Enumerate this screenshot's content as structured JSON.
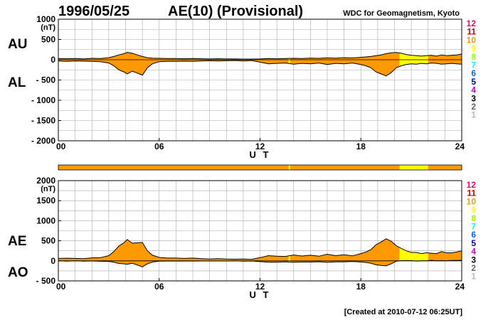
{
  "header": {
    "date": "1996/05/25",
    "title": "AE(10) (Provisional)",
    "source": "WDC for Geomagnetism, Kyoto"
  },
  "footer": "[Created at 2010-07-12 06:25UT]",
  "colors": {
    "fill_main": "#ff9900",
    "fill_low_count": "#ffff00",
    "grid": "#aaaaaa",
    "curve": "#000000"
  },
  "legend_counts": [
    {
      "label": "12",
      "color": "#ff0066"
    },
    {
      "label": "11",
      "color": "#cc0000"
    },
    {
      "label": "10",
      "color": "#ff9900"
    },
    {
      "label": "9",
      "color": "#ffff00"
    },
    {
      "label": "8",
      "color": "#99ff00"
    },
    {
      "label": "7",
      "color": "#00ffff"
    },
    {
      "label": "6",
      "color": "#0066ff"
    },
    {
      "label": "5",
      "color": "#0000cc"
    },
    {
      "label": "4",
      "color": "#cc00cc"
    },
    {
      "label": "3",
      "color": "#000000"
    },
    {
      "label": "2",
      "color": "#666666"
    },
    {
      "label": "1",
      "color": "#bbbbbb"
    }
  ],
  "chart_data": [
    {
      "type": "area",
      "panel": "AU/AL",
      "side_labels": [
        "AU",
        "AL"
      ],
      "unit": "(nT)",
      "xlabel": "U T",
      "x_ticks": [
        "00",
        "06",
        "12",
        "18",
        "24"
      ],
      "xlim": [
        0,
        24
      ],
      "ylim": [
        -2000,
        1000
      ],
      "y_ticks": [
        {
          "value": 1000,
          "label": "1000"
        },
        {
          "value": 500,
          "label": "500"
        },
        {
          "value": 0,
          "label": "0"
        },
        {
          "value": -500,
          "label": "- 500"
        },
        {
          "value": -1000,
          "label": "- 1000"
        },
        {
          "value": -1500,
          "label": "- 1500"
        },
        {
          "value": -2000,
          "label": "- 2000"
        }
      ],
      "grid": true,
      "series": [
        {
          "name": "AU",
          "x": [
            0,
            0.5,
            1,
            1.5,
            2,
            2.5,
            3,
            3.3,
            3.6,
            3.9,
            4.1,
            4.4,
            4.7,
            5,
            5.3,
            5.6,
            6,
            6.5,
            7,
            7.5,
            8,
            8.5,
            9,
            9.5,
            10,
            10.5,
            11,
            11.5,
            12,
            12.5,
            13,
            13.5,
            14,
            14.5,
            15,
            15.5,
            16,
            16.5,
            17,
            17.5,
            18,
            18.3,
            18.6,
            18.9,
            19.2,
            19.5,
            19.8,
            20.1,
            20.4,
            20.7,
            21,
            21.3,
            21.6,
            21.9,
            22.2,
            22.5,
            22.8,
            23.1,
            23.4,
            23.7,
            24
          ],
          "values": [
            30,
            25,
            30,
            20,
            35,
            30,
            50,
            80,
            120,
            150,
            180,
            160,
            120,
            80,
            50,
            40,
            35,
            30,
            30,
            25,
            30,
            25,
            20,
            25,
            20,
            20,
            15,
            15,
            20,
            30,
            25,
            30,
            35,
            30,
            40,
            35,
            45,
            40,
            50,
            45,
            60,
            70,
            80,
            100,
            120,
            150,
            170,
            180,
            160,
            130,
            110,
            100,
            90,
            100,
            110,
            90,
            120,
            100,
            110,
            120,
            140
          ]
        },
        {
          "name": "AL",
          "x": [
            0,
            0.5,
            1,
            1.5,
            2,
            2.5,
            3,
            3.3,
            3.6,
            3.9,
            4.1,
            4.4,
            4.7,
            5,
            5.3,
            5.6,
            6,
            6.5,
            7,
            7.5,
            8,
            8.5,
            9,
            9.5,
            10,
            10.5,
            11,
            11.5,
            12,
            12.5,
            13,
            13.5,
            14,
            14.5,
            15,
            15.5,
            16,
            16.5,
            17,
            17.5,
            18,
            18.3,
            18.6,
            18.9,
            19.2,
            19.5,
            19.8,
            20.1,
            20.4,
            20.7,
            21,
            21.3,
            21.6,
            21.9,
            22.2,
            22.5,
            22.8,
            23.1,
            23.4,
            23.7,
            24
          ],
          "values": [
            -30,
            -40,
            -30,
            -35,
            -40,
            -50,
            -80,
            -150,
            -250,
            -300,
            -350,
            -280,
            -330,
            -380,
            -200,
            -100,
            -50,
            -40,
            -40,
            -35,
            -40,
            -30,
            -25,
            -30,
            -25,
            -20,
            -30,
            -20,
            -60,
            -100,
            -90,
            -80,
            -110,
            -90,
            -100,
            -80,
            -120,
            -90,
            -100,
            -80,
            -120,
            -150,
            -200,
            -300,
            -350,
            -400,
            -320,
            -200,
            -150,
            -120,
            -100,
            -110,
            -90,
            -100,
            -80,
            -90,
            -110,
            -100,
            -90,
            -100,
            -110
          ]
        }
      ]
    },
    {
      "type": "area",
      "panel": "AE/AO",
      "side_labels": [
        "AE",
        "AO"
      ],
      "unit": "(nT)",
      "xlabel": "U T",
      "x_ticks": [
        "00",
        "06",
        "12",
        "18",
        "24"
      ],
      "xlim": [
        0,
        24
      ],
      "ylim": [
        -500,
        2000
      ],
      "y_ticks": [
        {
          "value": 2000,
          "label": "2000"
        },
        {
          "value": 1500,
          "label": "1500"
        },
        {
          "value": 1000,
          "label": "1000"
        },
        {
          "value": 500,
          "label": "500"
        },
        {
          "value": 0,
          "label": "0"
        },
        {
          "value": -500,
          "label": "- 500"
        }
      ],
      "grid": true,
      "series": [
        {
          "name": "AE",
          "x": [
            0,
            0.5,
            1,
            1.5,
            2,
            2.5,
            3,
            3.3,
            3.6,
            3.9,
            4.1,
            4.4,
            4.7,
            5,
            5.3,
            5.6,
            6,
            6.5,
            7,
            7.5,
            8,
            8.5,
            9,
            9.5,
            10,
            10.5,
            11,
            11.5,
            12,
            12.5,
            13,
            13.5,
            14,
            14.5,
            15,
            15.5,
            16,
            16.5,
            17,
            17.5,
            18,
            18.3,
            18.6,
            18.9,
            19.2,
            19.5,
            19.8,
            20.1,
            20.4,
            20.7,
            21,
            21.3,
            21.6,
            21.9,
            22.2,
            22.5,
            22.8,
            23.1,
            23.4,
            23.7,
            24
          ],
          "values": [
            60,
            65,
            60,
            55,
            75,
            80,
            130,
            230,
            370,
            450,
            530,
            440,
            450,
            460,
            250,
            140,
            85,
            70,
            70,
            60,
            70,
            55,
            45,
            55,
            45,
            40,
            45,
            35,
            80,
            130,
            115,
            110,
            145,
            120,
            140,
            115,
            165,
            130,
            150,
            125,
            180,
            220,
            280,
            400,
            470,
            550,
            490,
            380,
            310,
            250,
            210,
            210,
            180,
            200,
            190,
            180,
            230,
            200,
            200,
            220,
            250
          ]
        },
        {
          "name": "AO",
          "x": [
            0,
            0.5,
            1,
            1.5,
            2,
            2.5,
            3,
            3.3,
            3.6,
            3.9,
            4.1,
            4.4,
            4.7,
            5,
            5.3,
            5.6,
            6,
            6.5,
            7,
            7.5,
            8,
            8.5,
            9,
            9.5,
            10,
            10.5,
            11,
            11.5,
            12,
            12.5,
            13,
            13.5,
            14,
            14.5,
            15,
            15.5,
            16,
            16.5,
            17,
            17.5,
            18,
            18.3,
            18.6,
            18.9,
            19.2,
            19.5,
            19.8,
            20.1,
            20.4,
            20.7,
            21,
            21.3,
            21.6,
            21.9,
            22.2,
            22.5,
            22.8,
            23.1,
            23.4,
            23.7,
            24
          ],
          "values": [
            0,
            -8,
            0,
            -8,
            -3,
            -10,
            -15,
            -35,
            -65,
            -75,
            -85,
            -60,
            -105,
            -150,
            -75,
            -30,
            -8,
            -5,
            -5,
            -5,
            -5,
            -3,
            -3,
            -3,
            -3,
            0,
            -8,
            -3,
            -20,
            -35,
            -33,
            -25,
            -38,
            -30,
            -30,
            -23,
            -38,
            -25,
            -25,
            -18,
            -30,
            -40,
            -60,
            -100,
            -115,
            -125,
            -75,
            -10,
            5,
            5,
            5,
            -5,
            0,
            0,
            15,
            0,
            5,
            0,
            10,
            10,
            15
          ]
        }
      ]
    }
  ],
  "station_count_bar": {
    "segments": [
      {
        "from": 0,
        "to": 13.7,
        "count": 10
      },
      {
        "from": 13.7,
        "to": 13.8,
        "count": 9
      },
      {
        "from": 13.8,
        "to": 20.3,
        "count": 10
      },
      {
        "from": 20.3,
        "to": 22.0,
        "count": 9
      },
      {
        "from": 22.0,
        "to": 24,
        "count": 10
      }
    ]
  }
}
